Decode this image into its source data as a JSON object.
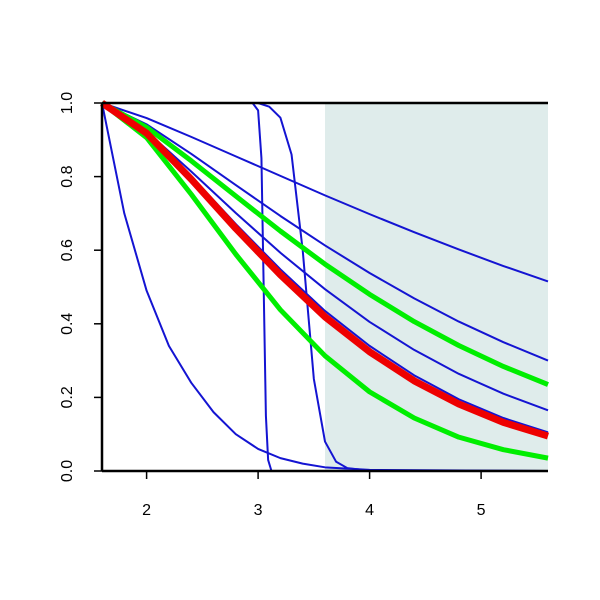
{
  "chart_data": {
    "type": "line",
    "xlim": [
      1.6,
      5.6
    ],
    "ylim": [
      0,
      1
    ],
    "xticks": [
      2,
      3,
      4,
      5
    ],
    "yticks": [
      {
        "value": 0,
        "label": "0.0"
      },
      0.2,
      0.4,
      0.6,
      0.8,
      {
        "value": 1,
        "label": "1.0"
      }
    ],
    "shade": {
      "xlim": [
        3.6,
        5.6
      ],
      "color": "#dfeceb"
    },
    "x": [
      1.6,
      2.0,
      2.4,
      2.8,
      3.2,
      3.6,
      4.0,
      4.4,
      4.8,
      5.2,
      5.6
    ],
    "series": [
      {
        "color": "#1414d2",
        "width": 2,
        "x": [
          1.6,
          1.8,
          2.0,
          2.2,
          2.4,
          2.6,
          2.8,
          3.0,
          3.2,
          3.4,
          3.6,
          4.0,
          5.6
        ],
        "values": [
          1,
          0.7,
          0.49,
          0.34,
          0.24,
          0.16,
          0.1,
          0.06,
          0.035,
          0.02,
          0.01,
          0.003,
          0
        ]
      },
      {
        "color": "#1414d2",
        "width": 2,
        "x": [
          1.6,
          2.95,
          3.0,
          3.03,
          3.05,
          3.07,
          3.09,
          3.12,
          5.6
        ],
        "values": [
          1,
          1,
          0.98,
          0.85,
          0.5,
          0.15,
          0.03,
          0,
          0
        ]
      },
      {
        "color": "#1414d2",
        "width": 2,
        "x": [
          1.6,
          3.0,
          3.1,
          3.2,
          3.3,
          3.4,
          3.5,
          3.6,
          3.7,
          3.8,
          4.0,
          5.6
        ],
        "values": [
          1,
          1,
          0.99,
          0.96,
          0.86,
          0.6,
          0.25,
          0.08,
          0.025,
          0.008,
          0.001,
          0
        ]
      },
      {
        "color": "#1414d2",
        "width": 2,
        "values": [
          1,
          0.959,
          0.908,
          0.855,
          0.802,
          0.749,
          0.698,
          0.649,
          0.602,
          0.557,
          0.515
        ]
      },
      {
        "color": "#1414d2",
        "width": 2,
        "values": [
          1,
          0.942,
          0.862,
          0.777,
          0.693,
          0.613,
          0.538,
          0.469,
          0.406,
          0.35,
          0.3
        ]
      },
      {
        "color": "#1414d2",
        "width": 2,
        "values": [
          1,
          0.923,
          0.814,
          0.701,
          0.593,
          0.494,
          0.405,
          0.329,
          0.264,
          0.21,
          0.165
        ]
      },
      {
        "color": "#1414d2",
        "width": 2,
        "values": [
          1,
          0.922,
          0.801,
          0.671,
          0.548,
          0.435,
          0.34,
          0.26,
          0.195,
          0.144,
          0.105
        ]
      },
      {
        "color": "#00ee00",
        "width": 5,
        "values": [
          1,
          0.934,
          0.843,
          0.747,
          0.652,
          0.562,
          0.48,
          0.406,
          0.341,
          0.284,
          0.235
        ]
      },
      {
        "color": "#00ee00",
        "width": 5,
        "values": [
          1,
          0.906,
          0.752,
          0.589,
          0.438,
          0.313,
          0.215,
          0.144,
          0.092,
          0.058,
          0.035
        ]
      },
      {
        "color": "#ee0000",
        "width": 7,
        "values": [
          1,
          0.918,
          0.793,
          0.659,
          0.533,
          0.419,
          0.324,
          0.245,
          0.182,
          0.132,
          0.095
        ]
      }
    ]
  }
}
